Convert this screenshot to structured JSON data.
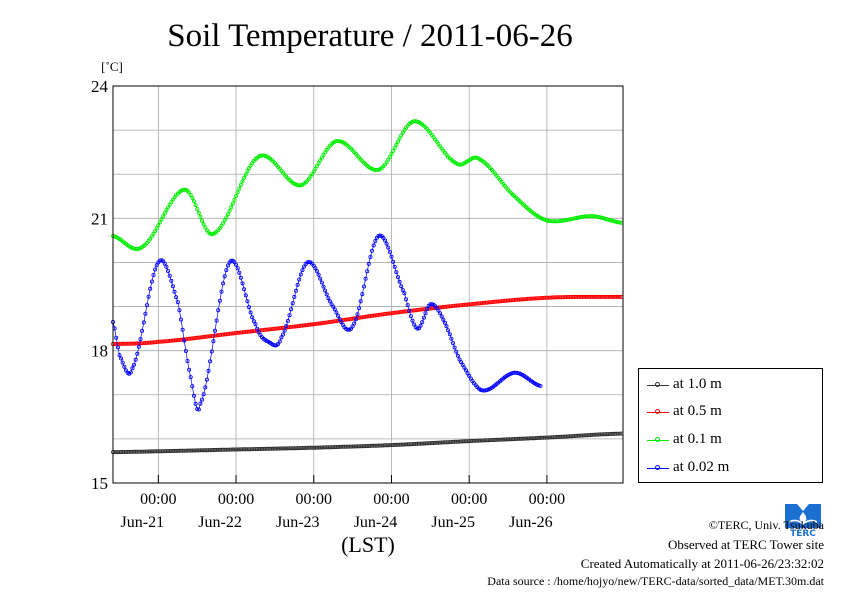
{
  "chart_data": {
    "type": "scatter",
    "title": "Soil Temperature / 2011-06-26",
    "ylabel": "[˚C]",
    "xlabel": "(LST)",
    "ylim": [
      15,
      24
    ],
    "y_ticks": [
      15,
      18,
      21,
      24
    ],
    "x_ticks": [
      {
        "time": "00:00",
        "date": "Jun-21"
      },
      {
        "time": "00:00",
        "date": "Jun-22"
      },
      {
        "time": "00:00",
        "date": "Jun-23"
      },
      {
        "time": "00:00",
        "date": "Jun-24"
      },
      {
        "time": "00:00",
        "date": "Jun-25"
      },
      {
        "time": "00:00",
        "date": "Jun-26"
      }
    ],
    "grid": true,
    "legend_position": "right-bottom",
    "series": [
      {
        "name": "at 1.0 m",
        "color": "#333333",
        "points": [
          [
            "2011-06-20 10:00",
            15.7
          ],
          [
            "2011-06-21 00:00",
            15.72
          ],
          [
            "2011-06-22 00:00",
            15.76
          ],
          [
            "2011-06-23 00:00",
            15.8
          ],
          [
            "2011-06-24 00:00",
            15.86
          ],
          [
            "2011-06-25 00:00",
            15.95
          ],
          [
            "2011-06-26 00:00",
            16.03
          ],
          [
            "2011-06-26 23:00",
            16.12
          ]
        ]
      },
      {
        "name": "at 0.5 m",
        "color": "#ff0000",
        "points": [
          [
            "2011-06-20 10:00",
            18.15
          ],
          [
            "2011-06-21 00:00",
            18.2
          ],
          [
            "2011-06-22 00:00",
            18.4
          ],
          [
            "2011-06-23 00:00",
            18.6
          ],
          [
            "2011-06-24 00:00",
            18.85
          ],
          [
            "2011-06-25 00:00",
            19.05
          ],
          [
            "2011-06-26 00:00",
            19.2
          ],
          [
            "2011-06-26 23:00",
            19.22
          ]
        ]
      },
      {
        "name": "at 0.1 m",
        "color": "#00ee00",
        "points": [
          [
            "2011-06-20 10:00",
            20.6
          ],
          [
            "2011-06-20 19:00",
            20.35
          ],
          [
            "2011-06-21 08:00",
            21.65
          ],
          [
            "2011-06-21 17:00",
            20.65
          ],
          [
            "2011-06-22 07:00",
            22.4
          ],
          [
            "2011-06-22 20:00",
            21.75
          ],
          [
            "2011-06-23 07:00",
            22.75
          ],
          [
            "2011-06-23 20:00",
            22.1
          ],
          [
            "2011-06-24 07:00",
            23.2
          ],
          [
            "2011-06-24 20:00",
            22.25
          ],
          [
            "2011-06-25 03:00",
            22.35
          ],
          [
            "2011-06-25 14:00",
            21.5
          ],
          [
            "2011-06-26 00:00",
            20.95
          ],
          [
            "2011-06-26 14:00",
            21.05
          ],
          [
            "2011-06-26 23:00",
            20.9
          ]
        ]
      },
      {
        "name": "at 0.02 m",
        "color": "#0000ff",
        "points": [
          [
            "2011-06-20 10:00",
            18.65
          ],
          [
            "2011-06-20 12:00",
            17.9
          ],
          [
            "2011-06-20 16:00",
            17.6
          ],
          [
            "2011-06-21 00:00",
            20.0
          ],
          [
            "2011-06-21 06:00",
            19.1
          ],
          [
            "2011-06-21 10:00",
            17.4
          ],
          [
            "2011-06-21 13:00",
            16.8
          ],
          [
            "2011-06-21 22:00",
            20.0
          ],
          [
            "2011-06-22 06:00",
            18.6
          ],
          [
            "2011-06-22 10:00",
            18.2
          ],
          [
            "2011-06-22 14:00",
            18.3
          ],
          [
            "2011-06-22 22:00",
            20.0
          ],
          [
            "2011-06-23 06:00",
            19.0
          ],
          [
            "2011-06-23 12:00",
            18.55
          ],
          [
            "2011-06-23 20:00",
            20.6
          ],
          [
            "2011-06-24 04:00",
            19.3
          ],
          [
            "2011-06-24 08:00",
            18.5
          ],
          [
            "2011-06-24 12:00",
            19.05
          ],
          [
            "2011-06-24 16:00",
            18.7
          ],
          [
            "2011-06-24 21:00",
            17.8
          ],
          [
            "2011-06-25 04:00",
            17.1
          ],
          [
            "2011-06-25 14:00",
            17.5
          ],
          [
            "2011-06-25 22:00",
            17.2
          ]
        ]
      }
    ]
  },
  "credits": {
    "copyright": "©TERC, Univ. Tsukuba",
    "observed": "Observed at TERC Tower site",
    "created": "Created Automatically at 2011-06-26/23:32:02",
    "source": "Data source : /home/hojyo/new/TERC-data/sorted_data/MET.30m.dat"
  },
  "logo": {
    "text": "TERC",
    "color": "#1a6fd0"
  }
}
